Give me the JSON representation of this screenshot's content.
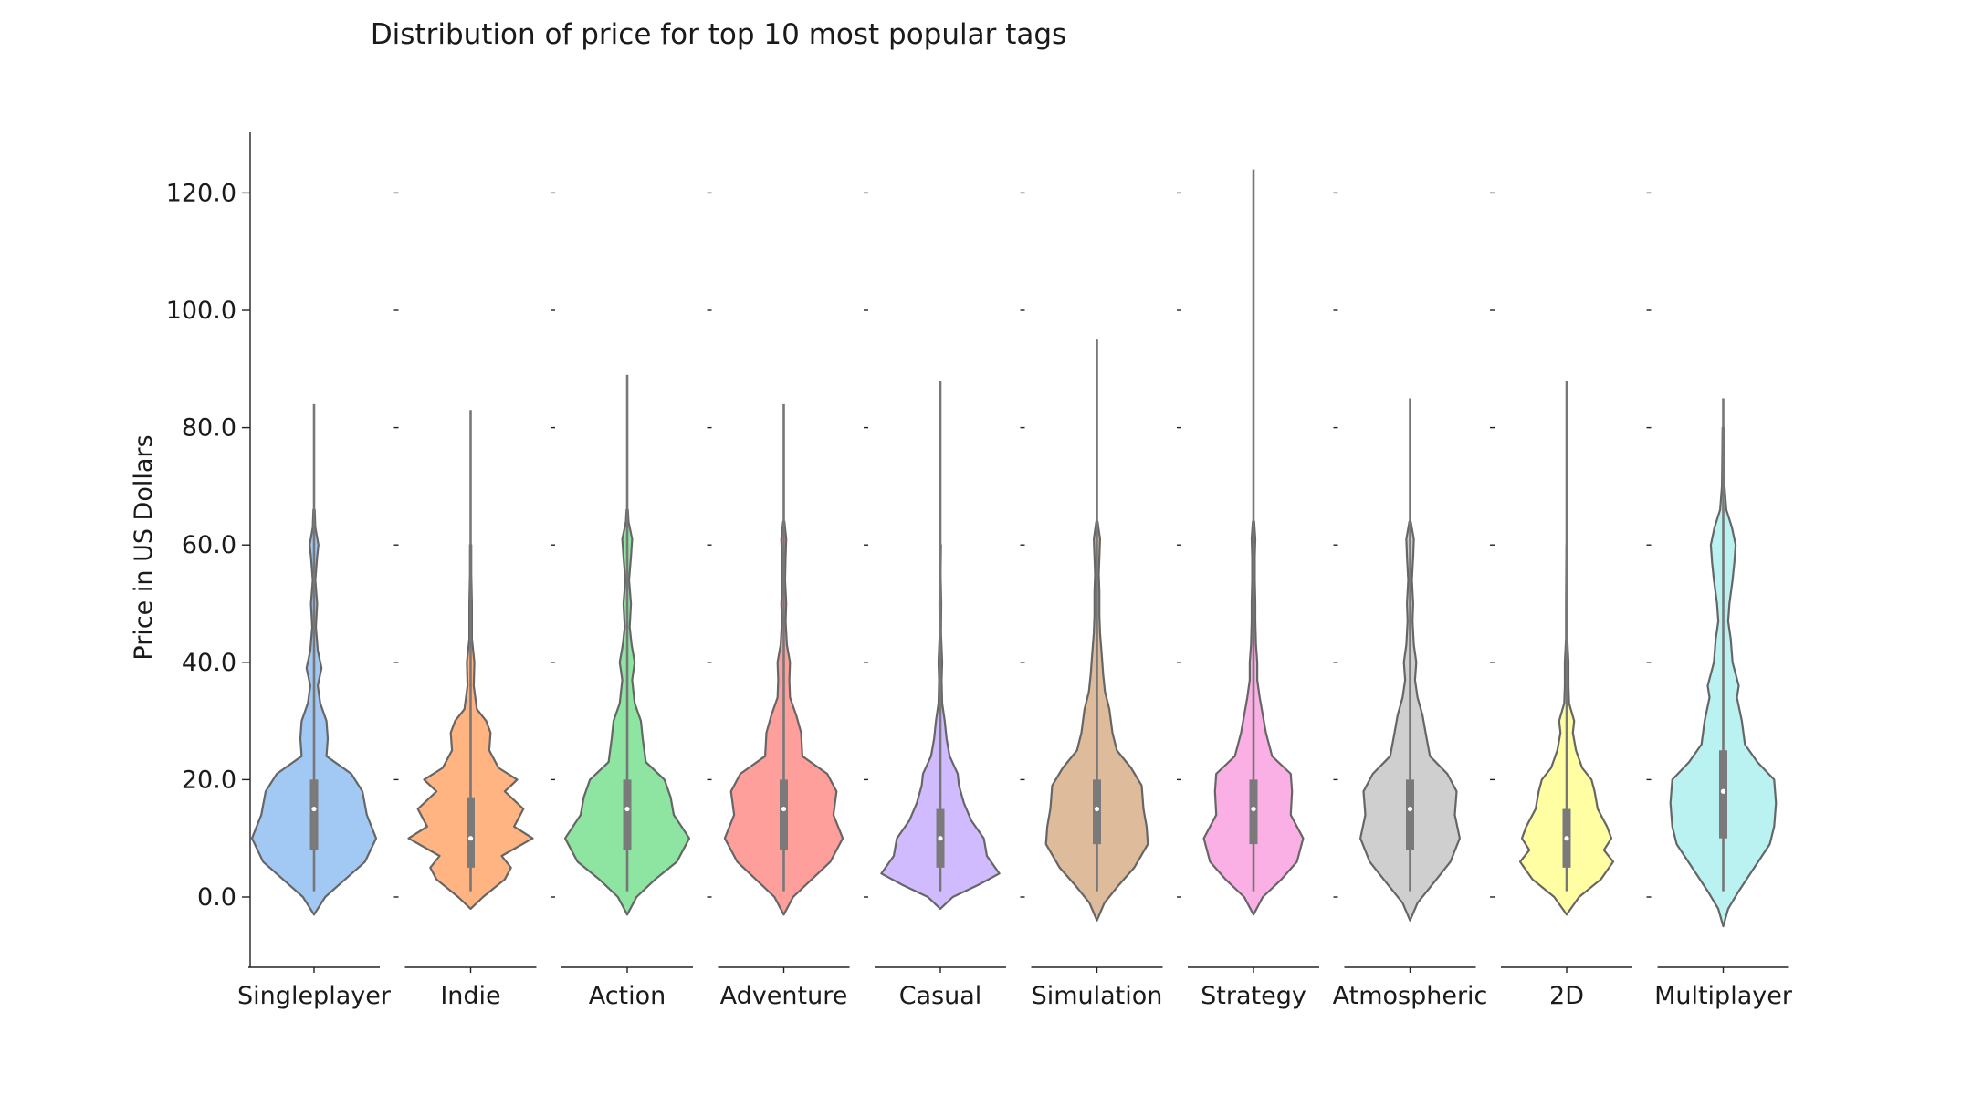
{
  "chart_data": {
    "type": "violin",
    "title": "Distribution of price for top 10 most popular tags",
    "xlabel": "",
    "ylabel": "Price in US Dollars",
    "ylim": [
      -11,
      131
    ],
    "yticks": [
      0,
      20,
      40,
      60,
      80,
      100,
      120
    ],
    "ytick_labels": [
      "0.0",
      "20.0",
      "40.0",
      "60.0",
      "80.0",
      "100.0",
      "120.0"
    ],
    "grid": false,
    "legend": "none",
    "categories": [
      "Singleplayer",
      "Indie",
      "Action",
      "Adventure",
      "Casual",
      "Simulation",
      "Strategy",
      "Atmospheric",
      "2D",
      "Multiplayer"
    ],
    "series": [
      {
        "category": "Singleplayer",
        "color": "#a1c9f4",
        "min": 1,
        "max": 84,
        "q1": 8,
        "median": 15,
        "q3": 20,
        "density": [
          [
            -3,
            0
          ],
          [
            0,
            0.18
          ],
          [
            3,
            0.5
          ],
          [
            6,
            0.82
          ],
          [
            10,
            1.0
          ],
          [
            14,
            0.85
          ],
          [
            18,
            0.78
          ],
          [
            21,
            0.6
          ],
          [
            24,
            0.2
          ],
          [
            27,
            0.22
          ],
          [
            30,
            0.2
          ],
          [
            33,
            0.1
          ],
          [
            36,
            0.06
          ],
          [
            39,
            0.12
          ],
          [
            42,
            0.06
          ],
          [
            46,
            0.03
          ],
          [
            50,
            0.05
          ],
          [
            54,
            0.02
          ],
          [
            58,
            0.05
          ],
          [
            60,
            0.07
          ],
          [
            63,
            0.02
          ],
          [
            66,
            0.01
          ]
        ]
      },
      {
        "category": "Indie",
        "color": "#ffb482",
        "min": 1,
        "max": 83,
        "q1": 5,
        "median": 10,
        "q3": 17,
        "density": [
          [
            -2,
            0
          ],
          [
            0,
            0.2
          ],
          [
            3,
            0.55
          ],
          [
            5,
            0.65
          ],
          [
            7,
            0.5
          ],
          [
            10,
            1.0
          ],
          [
            12,
            0.7
          ],
          [
            15,
            0.85
          ],
          [
            18,
            0.55
          ],
          [
            20,
            0.75
          ],
          [
            22,
            0.45
          ],
          [
            25,
            0.3
          ],
          [
            28,
            0.32
          ],
          [
            30,
            0.25
          ],
          [
            32,
            0.1
          ],
          [
            36,
            0.05
          ],
          [
            40,
            0.06
          ],
          [
            44,
            0.02
          ],
          [
            50,
            0.02
          ],
          [
            55,
            0.01
          ],
          [
            60,
            0.01
          ]
        ]
      },
      {
        "category": "Action",
        "color": "#8de5a1",
        "min": 1,
        "max": 89,
        "q1": 8,
        "median": 15,
        "q3": 20,
        "density": [
          [
            -3,
            0
          ],
          [
            0,
            0.15
          ],
          [
            3,
            0.45
          ],
          [
            6,
            0.8
          ],
          [
            10,
            1.0
          ],
          [
            14,
            0.75
          ],
          [
            17,
            0.7
          ],
          [
            20,
            0.6
          ],
          [
            23,
            0.3
          ],
          [
            27,
            0.25
          ],
          [
            30,
            0.22
          ],
          [
            33,
            0.12
          ],
          [
            37,
            0.08
          ],
          [
            40,
            0.12
          ],
          [
            43,
            0.07
          ],
          [
            46,
            0.04
          ],
          [
            50,
            0.06
          ],
          [
            54,
            0.03
          ],
          [
            58,
            0.06
          ],
          [
            61,
            0.08
          ],
          [
            64,
            0.02
          ],
          [
            66,
            0.01
          ]
        ]
      },
      {
        "category": "Adventure",
        "color": "#ff9f9b",
        "min": 1,
        "max": 84,
        "q1": 8,
        "median": 15,
        "q3": 20,
        "density": [
          [
            -3,
            0
          ],
          [
            0,
            0.15
          ],
          [
            3,
            0.45
          ],
          [
            6,
            0.75
          ],
          [
            10,
            0.95
          ],
          [
            14,
            0.8
          ],
          [
            18,
            0.85
          ],
          [
            21,
            0.7
          ],
          [
            24,
            0.3
          ],
          [
            28,
            0.28
          ],
          [
            31,
            0.2
          ],
          [
            34,
            0.1
          ],
          [
            37,
            0.09
          ],
          [
            40,
            0.1
          ],
          [
            43,
            0.05
          ],
          [
            47,
            0.03
          ],
          [
            50,
            0.04
          ],
          [
            54,
            0.02
          ],
          [
            58,
            0.03
          ],
          [
            61,
            0.04
          ],
          [
            64,
            0.01
          ]
        ]
      },
      {
        "category": "Casual",
        "color": "#d0bbff",
        "min": 1,
        "max": 88,
        "q1": 5,
        "median": 10,
        "q3": 15,
        "density": [
          [
            -2,
            0
          ],
          [
            0,
            0.2
          ],
          [
            2,
            0.6
          ],
          [
            4,
            0.95
          ],
          [
            7,
            0.75
          ],
          [
            10,
            0.7
          ],
          [
            13,
            0.5
          ],
          [
            16,
            0.38
          ],
          [
            19,
            0.3
          ],
          [
            21,
            0.28
          ],
          [
            24,
            0.15
          ],
          [
            27,
            0.1
          ],
          [
            30,
            0.07
          ],
          [
            33,
            0.03
          ],
          [
            37,
            0.02
          ],
          [
            40,
            0.03
          ],
          [
            45,
            0.01
          ],
          [
            50,
            0.015
          ],
          [
            55,
            0.005
          ],
          [
            60,
            0.01
          ]
        ]
      },
      {
        "category": "Simulation",
        "color": "#debb9b",
        "min": 1,
        "max": 95,
        "q1": 9,
        "median": 15,
        "q3": 20,
        "density": [
          [
            -4,
            0
          ],
          [
            -1,
            0.12
          ],
          [
            2,
            0.35
          ],
          [
            5,
            0.6
          ],
          [
            9,
            0.82
          ],
          [
            12,
            0.8
          ],
          [
            15,
            0.75
          ],
          [
            19,
            0.72
          ],
          [
            22,
            0.55
          ],
          [
            25,
            0.32
          ],
          [
            28,
            0.25
          ],
          [
            32,
            0.2
          ],
          [
            35,
            0.13
          ],
          [
            38,
            0.1
          ],
          [
            41,
            0.08
          ],
          [
            45,
            0.05
          ],
          [
            48,
            0.04
          ],
          [
            52,
            0.04
          ],
          [
            55,
            0.03
          ],
          [
            58,
            0.04
          ],
          [
            61,
            0.05
          ],
          [
            64,
            0.01
          ]
        ]
      },
      {
        "category": "Strategy",
        "color": "#fab0e4",
        "min": 1,
        "max": 124,
        "q1": 9,
        "median": 15,
        "q3": 20,
        "density": [
          [
            -3,
            0
          ],
          [
            0,
            0.15
          ],
          [
            3,
            0.45
          ],
          [
            6,
            0.7
          ],
          [
            10,
            0.8
          ],
          [
            14,
            0.6
          ],
          [
            18,
            0.62
          ],
          [
            21,
            0.6
          ],
          [
            24,
            0.3
          ],
          [
            28,
            0.2
          ],
          [
            31,
            0.15
          ],
          [
            34,
            0.1
          ],
          [
            37,
            0.06
          ],
          [
            40,
            0.06
          ],
          [
            43,
            0.04
          ],
          [
            47,
            0.03
          ],
          [
            50,
            0.03
          ],
          [
            54,
            0.02
          ],
          [
            58,
            0.02
          ],
          [
            61,
            0.03
          ],
          [
            64,
            0.01
          ]
        ]
      },
      {
        "category": "Atmospheric",
        "color": "#cfcfcf",
        "min": 1,
        "max": 85,
        "q1": 8,
        "median": 15,
        "q3": 20,
        "density": [
          [
            -4,
            0
          ],
          [
            -1,
            0.12
          ],
          [
            2,
            0.35
          ],
          [
            6,
            0.65
          ],
          [
            10,
            0.8
          ],
          [
            14,
            0.72
          ],
          [
            18,
            0.75
          ],
          [
            21,
            0.6
          ],
          [
            24,
            0.32
          ],
          [
            28,
            0.25
          ],
          [
            31,
            0.2
          ],
          [
            34,
            0.12
          ],
          [
            37,
            0.08
          ],
          [
            40,
            0.1
          ],
          [
            43,
            0.06
          ],
          [
            47,
            0.04
          ],
          [
            50,
            0.05
          ],
          [
            54,
            0.03
          ],
          [
            58,
            0.05
          ],
          [
            61,
            0.06
          ],
          [
            64,
            0.01
          ]
        ]
      },
      {
        "category": "2D",
        "color": "#fffea3",
        "min": 1,
        "max": 88,
        "q1": 5,
        "median": 10,
        "q3": 15,
        "density": [
          [
            -3,
            0
          ],
          [
            0,
            0.2
          ],
          [
            3,
            0.55
          ],
          [
            6,
            0.75
          ],
          [
            8,
            0.6
          ],
          [
            10,
            0.72
          ],
          [
            12,
            0.65
          ],
          [
            15,
            0.5
          ],
          [
            18,
            0.45
          ],
          [
            20,
            0.4
          ],
          [
            22,
            0.25
          ],
          [
            25,
            0.15
          ],
          [
            28,
            0.1
          ],
          [
            30,
            0.12
          ],
          [
            33,
            0.04
          ],
          [
            36,
            0.03
          ],
          [
            40,
            0.03
          ],
          [
            44,
            0.01
          ],
          [
            50,
            0.01
          ],
          [
            60,
            0.005
          ]
        ]
      },
      {
        "category": "Multiplayer",
        "color": "#b9f2f0",
        "min": 1,
        "max": 85,
        "q1": 10,
        "median": 18,
        "q3": 25,
        "density": [
          [
            -5,
            0
          ],
          [
            -2,
            0.08
          ],
          [
            1,
            0.25
          ],
          [
            5,
            0.5
          ],
          [
            9,
            0.75
          ],
          [
            12,
            0.82
          ],
          [
            16,
            0.85
          ],
          [
            20,
            0.82
          ],
          [
            23,
            0.55
          ],
          [
            26,
            0.35
          ],
          [
            30,
            0.3
          ],
          [
            34,
            0.22
          ],
          [
            36,
            0.25
          ],
          [
            40,
            0.15
          ],
          [
            44,
            0.12
          ],
          [
            47,
            0.08
          ],
          [
            50,
            0.1
          ],
          [
            54,
            0.15
          ],
          [
            57,
            0.18
          ],
          [
            60,
            0.2
          ],
          [
            63,
            0.14
          ],
          [
            66,
            0.05
          ],
          [
            70,
            0.02
          ],
          [
            75,
            0.015
          ],
          [
            80,
            0.01
          ]
        ]
      }
    ]
  }
}
